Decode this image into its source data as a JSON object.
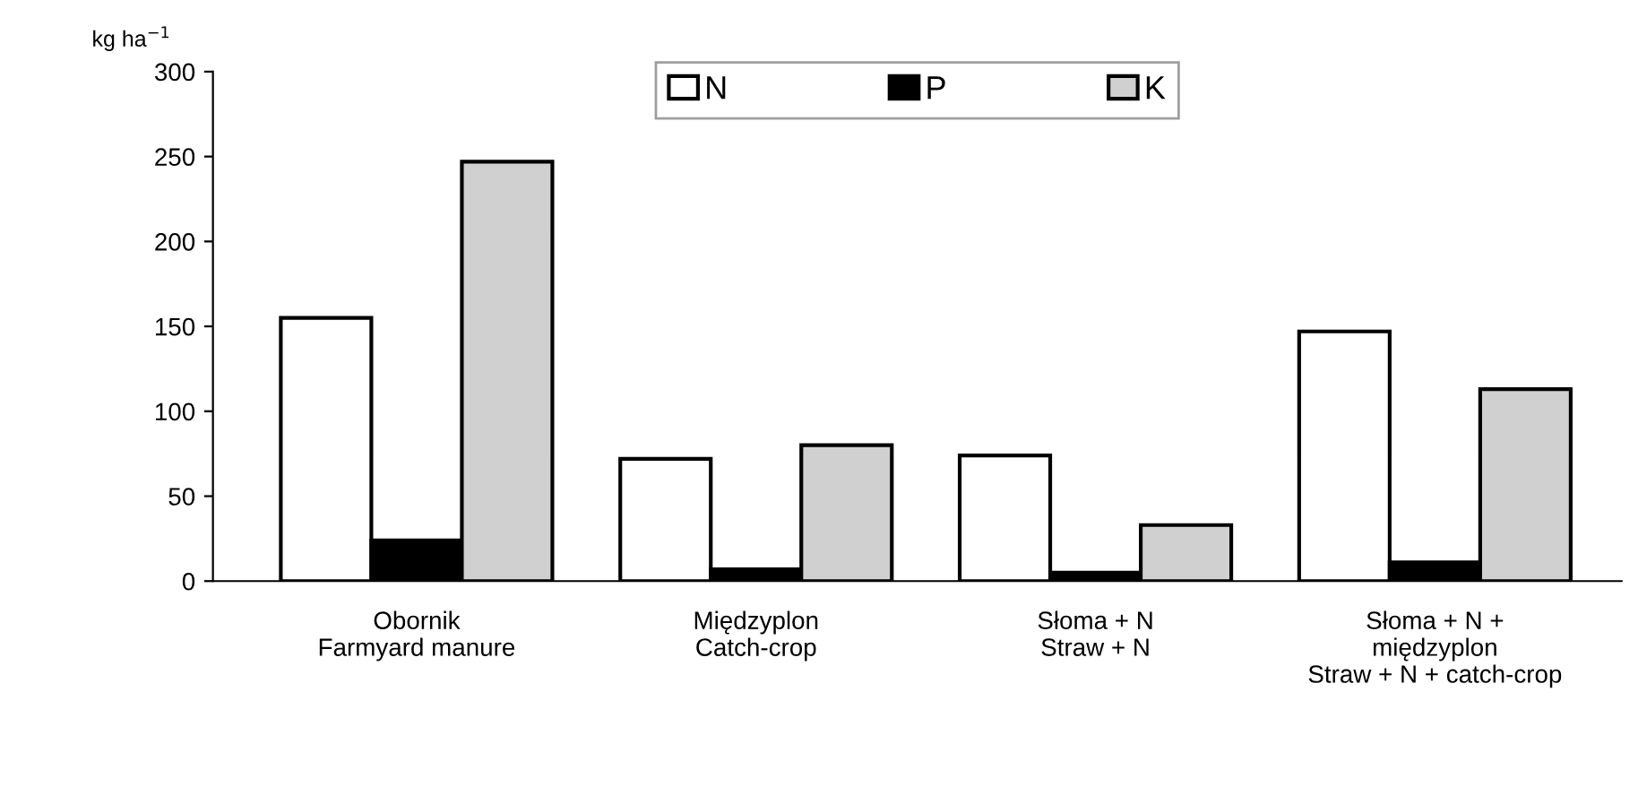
{
  "chart_data": {
    "type": "bar",
    "ylabel": "kg ha$^{−1}$",
    "categories": [
      "Obornik\nFarmyard manure",
      "Międzyplon\nCatch-crop",
      "Słoma + N\nStraw + N",
      "Słoma + N +\nmiędzyplon\nStraw + N + catch-crop"
    ],
    "series": [
      {
        "name": "N",
        "color": "#ffffff",
        "values": [
          155,
          72,
          74,
          147
        ]
      },
      {
        "name": "P",
        "color": "#000000",
        "values": [
          24,
          7,
          5,
          11
        ]
      },
      {
        "name": "K",
        "color": "#d0d0d0",
        "values": [
          247,
          80,
          33,
          113
        ]
      }
    ],
    "ylim": [
      0,
      300
    ],
    "yticks": [
      0,
      50,
      100,
      150,
      200,
      250,
      300
    ],
    "grid": false,
    "legend": "top"
  }
}
